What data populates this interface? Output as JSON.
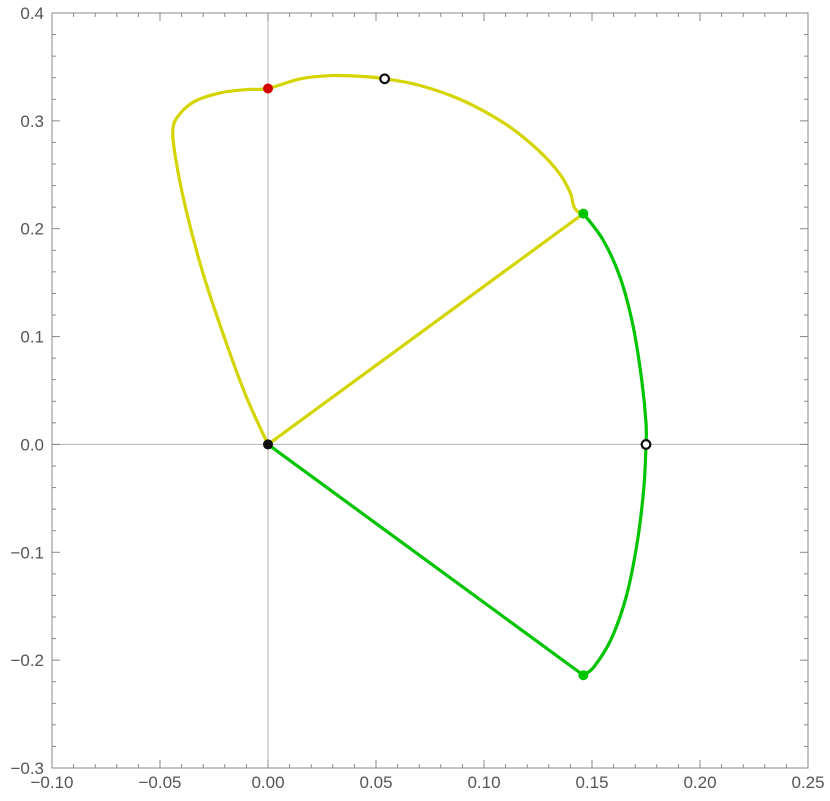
{
  "chart_data": {
    "type": "line",
    "title": "",
    "xlabel": "",
    "ylabel": "",
    "xlim": [
      -0.1,
      0.25
    ],
    "ylim": [
      -0.3,
      0.4
    ],
    "x_ticks": [
      -0.1,
      -0.05,
      0.0,
      0.05,
      0.1,
      0.15,
      0.2,
      0.25
    ],
    "x_tick_labels": [
      "−0.10",
      "−0.05",
      "0.00",
      "0.05",
      "0.10",
      "0.15",
      "0.20",
      "0.25"
    ],
    "y_ticks": [
      -0.3,
      -0.2,
      -0.1,
      0.0,
      0.1,
      0.2,
      0.3,
      0.4
    ],
    "y_tick_labels": [
      "−0.3",
      "−0.2",
      "−0.1",
      "0.0",
      "0.1",
      "0.2",
      "0.3",
      "0.4"
    ],
    "grid": false,
    "axes_through_origin": true,
    "colors": {
      "yellow": "#d4d400",
      "green": "#00c400",
      "red": "#d40000",
      "black": "#111111",
      "frame": "#888888",
      "axis": "#b3b3b3"
    },
    "series": [
      {
        "color": "yellow",
        "kind": "curve",
        "x": [
          0.0,
          -0.01,
          -0.02,
          -0.03,
          -0.038,
          -0.043,
          -0.044,
          -0.041,
          -0.034,
          -0.022,
          -0.01,
          0.0,
          0.015,
          0.03,
          0.045,
          0.054,
          0.07,
          0.09,
          0.11,
          0.125,
          0.135,
          0.14,
          0.141,
          0.142,
          0.144,
          0.146
        ],
        "y": [
          0.0,
          0.044,
          0.098,
          0.158,
          0.218,
          0.268,
          0.293,
          0.306,
          0.318,
          0.326,
          0.329,
          0.33,
          0.339,
          0.342,
          0.341,
          0.339,
          0.333,
          0.319,
          0.297,
          0.273,
          0.251,
          0.233,
          0.225,
          0.219,
          0.215,
          0.214
        ]
      },
      {
        "color": "yellow",
        "kind": "segment",
        "x": [
          0.0,
          0.146
        ],
        "y": [
          0.0,
          0.214
        ]
      },
      {
        "color": "green",
        "kind": "curve",
        "x": [
          0.146,
          0.155,
          0.163,
          0.169,
          0.173,
          0.175,
          0.175,
          0.174,
          0.171,
          0.166,
          0.159,
          0.151,
          0.146
        ],
        "y": [
          0.214,
          0.19,
          0.155,
          0.11,
          0.06,
          0.02,
          0.0,
          -0.04,
          -0.09,
          -0.14,
          -0.18,
          -0.206,
          -0.214
        ]
      },
      {
        "color": "green",
        "kind": "segment",
        "x": [
          0.0,
          0.146
        ],
        "y": [
          0.0,
          -0.214
        ]
      }
    ],
    "points": [
      {
        "x": 0.0,
        "y": 0.33,
        "color": "red",
        "style": "filled"
      },
      {
        "x": 0.054,
        "y": 0.339,
        "color": "black",
        "style": "open"
      },
      {
        "x": 0.146,
        "y": 0.214,
        "color": "green",
        "style": "filled"
      },
      {
        "x": 0.146,
        "y": -0.214,
        "color": "green",
        "style": "filled"
      },
      {
        "x": 0.175,
        "y": 0.0,
        "color": "black",
        "style": "open"
      },
      {
        "x": 0.0,
        "y": 0.0,
        "color": "black",
        "style": "filled"
      }
    ]
  }
}
